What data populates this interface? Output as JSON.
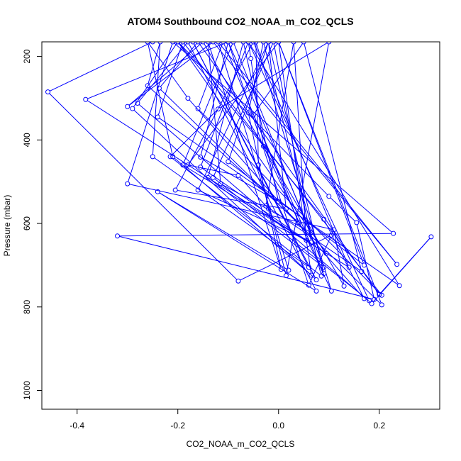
{
  "chart_data": {
    "type": "line",
    "title": "ATOM4 Southbound CO2_NOAA_m_CO2_QCLS",
    "xlabel": "CO2_NOAA_m_CO2_QCLS",
    "ylabel": "Pressure (mbar)",
    "xlim": [
      -0.47,
      0.32
    ],
    "ylim": [
      1045,
      165
    ],
    "y_reversed": true,
    "x_ticks": [
      -0.4,
      -0.2,
      0.0,
      0.2
    ],
    "x_tick_labels": [
      "-0.4",
      "-0.2",
      "0.0",
      "0.2"
    ],
    "y_ticks": [
      200,
      400,
      600,
      800,
      1000
    ],
    "y_tick_labels": [
      "200",
      "400",
      "600",
      "800",
      "1000"
    ],
    "grid": false,
    "series_color": "#0000ff",
    "marker": "open-circle",
    "series": [
      {
        "name": "CO2_NOAA_m_CO2_QCLS",
        "points": [
          [
            -0.25,
            165
          ],
          [
            -0.458,
            285
          ],
          [
            -0.08,
            738
          ],
          [
            0.105,
            628
          ],
          [
            0.06,
            748
          ],
          [
            -0.1,
            165
          ],
          [
            -0.383,
            303
          ],
          [
            0.095,
            672
          ],
          [
            -0.2,
            165
          ],
          [
            0.1,
            535
          ],
          [
            0.155,
            598
          ],
          [
            0.19,
            782
          ],
          [
            -0.32,
            630
          ],
          [
            0.228,
            624
          ],
          [
            -0.21,
            165
          ],
          [
            -0.3,
            505
          ],
          [
            0.11,
            615
          ],
          [
            0.13,
            750
          ],
          [
            -0.15,
            165
          ],
          [
            -0.3,
            320
          ],
          [
            -0.13,
            165
          ],
          [
            0.235,
            698
          ],
          [
            -0.12,
            165
          ],
          [
            0.02,
            712
          ],
          [
            -0.24,
            524
          ],
          [
            0.075,
            762
          ],
          [
            -0.18,
            165
          ],
          [
            -0.28,
            312
          ],
          [
            0.185,
            792
          ],
          [
            0.303,
            632
          ],
          [
            0.2,
            770
          ],
          [
            -0.16,
            165
          ],
          [
            -0.237,
            276
          ],
          [
            0.205,
            795
          ],
          [
            0.0,
            165
          ],
          [
            0.065,
            724
          ],
          [
            -0.21,
            440
          ],
          [
            -0.26,
            165
          ],
          [
            -0.18,
            300
          ],
          [
            0.17,
            780
          ],
          [
            0.09,
            590
          ],
          [
            -0.2,
            165
          ],
          [
            -0.29,
            325
          ],
          [
            0.075,
            735
          ],
          [
            -0.17,
            165
          ],
          [
            0.06,
            705
          ],
          [
            -0.25,
            440
          ],
          [
            -0.235,
            165
          ],
          [
            -0.26,
            270
          ],
          [
            0.04,
            598
          ],
          [
            -0.11,
            165
          ],
          [
            -0.16,
            325
          ],
          [
            0.205,
            772
          ],
          [
            -0.19,
            165
          ],
          [
            -0.24,
            345
          ],
          [
            0.24,
            749
          ],
          [
            -0.06,
            165
          ],
          [
            -0.055,
            205
          ],
          [
            -0.03,
            415
          ],
          [
            0.105,
            762
          ],
          [
            -0.045,
            165
          ],
          [
            -0.04,
            460
          ],
          [
            0.015,
            725
          ],
          [
            0.1,
            165
          ],
          [
            -0.12,
            326
          ],
          [
            -0.215,
            440
          ],
          [
            0.085,
            726
          ],
          [
            -0.03,
            165
          ],
          [
            -0.06,
            335
          ],
          [
            0.005,
            710
          ],
          [
            -0.14,
            165
          ],
          [
            -0.115,
            505
          ],
          [
            0.065,
            622
          ],
          [
            -0.1,
            165
          ],
          [
            -0.155,
            441
          ],
          [
            0.0,
            548
          ],
          [
            -0.07,
            165
          ],
          [
            -0.14,
            490
          ],
          [
            0.09,
            705
          ],
          [
            -0.09,
            165
          ],
          [
            -0.19,
            460
          ],
          [
            0.14,
            705
          ],
          [
            -0.05,
            165
          ],
          [
            -0.205,
            520
          ],
          [
            0.015,
            565
          ],
          [
            -0.02,
            165
          ],
          [
            -0.16,
            520
          ],
          [
            0.065,
            645
          ],
          [
            -0.01,
            165
          ],
          [
            -0.13,
            490
          ],
          [
            0.18,
            785
          ],
          [
            -0.06,
            165
          ],
          [
            -0.155,
            465
          ],
          [
            0.055,
            640
          ],
          [
            0.03,
            165
          ],
          [
            -0.025,
            558
          ],
          [
            0.165,
            715
          ],
          [
            0.05,
            165
          ],
          [
            -0.05,
            340
          ],
          [
            0.09,
            720
          ],
          [
            -0.02,
            165
          ],
          [
            -0.1,
            452
          ],
          [
            0.17,
            700
          ],
          [
            0.0,
            165
          ],
          [
            -0.18,
            460
          ],
          [
            -0.08,
            485
          ],
          [
            -0.02,
            565
          ]
        ]
      }
    ]
  }
}
